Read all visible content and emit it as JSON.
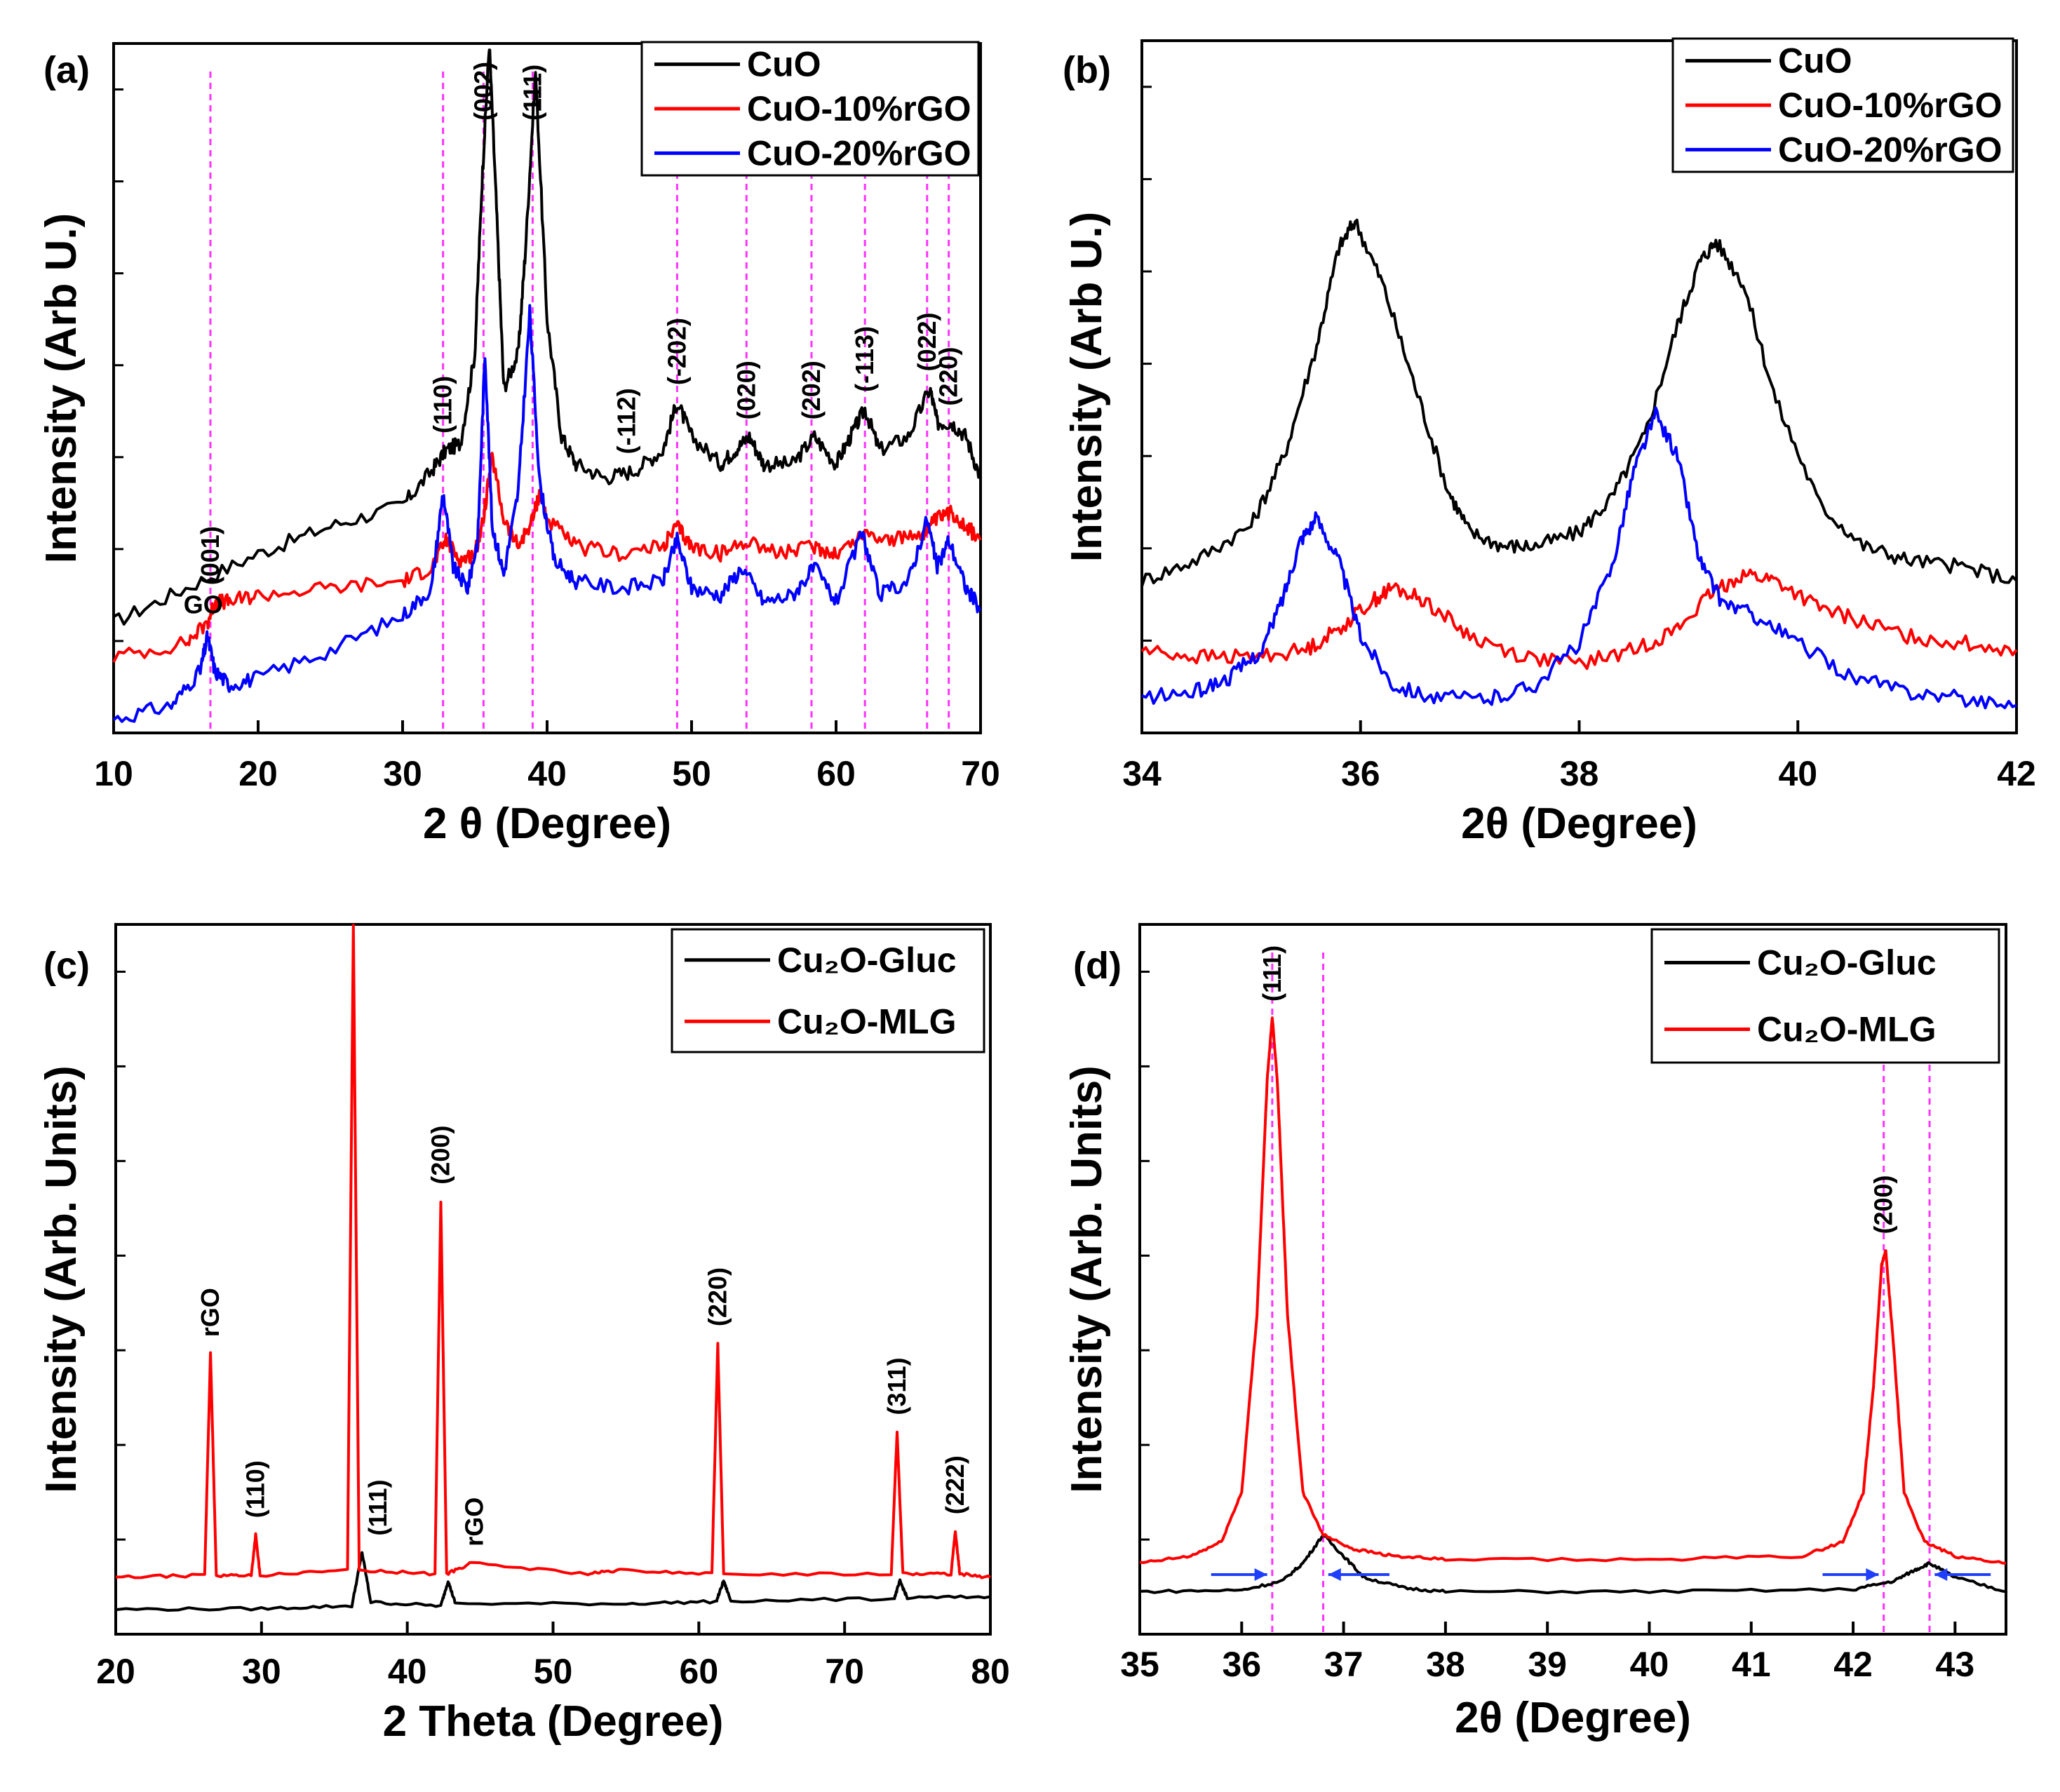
{
  "chart_data": [
    {
      "panel": "(a)",
      "type": "line",
      "xlabel": "2 θ (Degree)",
      "ylabel": "Intensity (Arb U.)",
      "xlim": [
        10,
        70
      ],
      "ylim": [
        0,
        100
      ],
      "xticks": [
        10,
        20,
        30,
        40,
        50,
        60,
        70
      ],
      "legend_position": "top-right",
      "series": [
        {
          "name": "CuO",
          "color": "#000000",
          "x": [
            10,
            15,
            20,
            25,
            30,
            32,
            33,
            34,
            35,
            35.5,
            36,
            36.5,
            37,
            38,
            38.5,
            39.2,
            40,
            41,
            42,
            44,
            46,
            48,
            49,
            50,
            52,
            53,
            54,
            55,
            57,
            58.5,
            60,
            61,
            62,
            63,
            65,
            66.5,
            67,
            68,
            69,
            70
          ],
          "y": [
            16,
            21,
            26,
            30,
            33,
            38,
            41,
            42,
            55,
            80,
            100,
            76,
            50,
            55,
            70,
            96,
            60,
            43,
            39,
            37,
            38,
            41,
            48,
            43,
            39,
            41,
            43,
            39,
            39,
            43,
            39,
            43,
            47,
            41,
            43,
            50,
            45,
            45,
            43,
            37
          ]
        },
        {
          "name": "CuO-10%rGO",
          "color": "#ff0000",
          "x": [
            10,
            15,
            16.5,
            17,
            18,
            20,
            25,
            30,
            32,
            33,
            34,
            35,
            35.5,
            36.2,
            37,
            38,
            39,
            39.5,
            40,
            42,
            45,
            48,
            49,
            50,
            52,
            54,
            56,
            58.5,
            60,
            62,
            64,
            66,
            67,
            68,
            69,
            70
          ],
          "y": [
            11,
            13,
            16,
            19,
            19,
            20,
            21,
            22,
            24,
            28,
            25,
            26,
            30,
            40,
            31,
            27,
            31,
            35,
            31,
            27,
            26,
            27,
            30,
            27,
            26,
            28,
            26,
            27,
            26,
            29,
            28,
            29,
            31,
            32,
            30,
            28
          ]
        },
        {
          "name": "CuO-20%rGO",
          "color": "#0000ff",
          "x": [
            10,
            14,
            16,
            16.5,
            17,
            18,
            20,
            25,
            30,
            32,
            32.8,
            33.5,
            34.5,
            35.2,
            35.7,
            36.2,
            37,
            38,
            38.8,
            39.5,
            40.5,
            42,
            45,
            48,
            49,
            50,
            52,
            53.5,
            55,
            57,
            58.5,
            60,
            61.8,
            63,
            65,
            66.3,
            67,
            67.8,
            69,
            70
          ],
          "y": [
            2,
            4,
            9,
            14,
            9,
            7,
            8,
            12,
            17,
            21,
            35,
            24,
            21,
            28,
            55,
            30,
            23,
            35,
            61,
            36,
            25,
            22,
            21,
            22,
            28,
            21,
            20,
            24,
            19,
            20,
            24,
            19,
            29,
            20,
            22,
            31,
            24,
            28,
            21,
            18
          ]
        }
      ],
      "vlines_x": [
        16.7,
        32.8,
        35.6,
        39.0,
        49.0,
        53.8,
        58.3,
        62.0,
        66.3,
        67.8
      ],
      "peak_labels": [
        {
          "text": "(001)",
          "x": 16.7
        },
        {
          "text": "GO",
          "x": 16.2
        },
        {
          "text": "(110)",
          "x": 32.8
        },
        {
          "text": "(002)",
          "x": 35.6
        },
        {
          "text": "(111)",
          "x": 39.0
        },
        {
          "text": "(-112)",
          "x": 45.5
        },
        {
          "text": "(-202)",
          "x": 49.0
        },
        {
          "text": "(020)",
          "x": 53.8
        },
        {
          "text": "(202)",
          "x": 58.3
        },
        {
          "text": "(-113)",
          "x": 62.0
        },
        {
          "text": "(022)",
          "x": 66.3
        },
        {
          "text": "(220)",
          "x": 67.8
        }
      ]
    },
    {
      "panel": "(b)",
      "type": "line",
      "xlabel": "2θ (Degree)",
      "ylabel": "Intensity (Arb U.)",
      "xlim": [
        34,
        42
      ],
      "ylim": [
        0,
        100
      ],
      "xticks": [
        34,
        36,
        38,
        40,
        42
      ],
      "legend_position": "top-right",
      "series": [
        {
          "name": "CuO",
          "color": "#000000",
          "x": [
            34,
            34.5,
            35,
            35.3,
            35.6,
            35.8,
            35.95,
            36.2,
            36.5,
            36.8,
            37.0,
            37.3,
            37.6,
            38.0,
            38.3,
            38.6,
            38.9,
            39.1,
            39.25,
            39.5,
            39.8,
            40.2,
            40.6,
            41,
            41.5,
            42
          ],
          "y": [
            22,
            25,
            30,
            40,
            56,
            70,
            74,
            65,
            50,
            35,
            29,
            27,
            27,
            29,
            34,
            43,
            59,
            68,
            71,
            65,
            48,
            33,
            27,
            25,
            24,
            22
          ]
        },
        {
          "name": "CuO-10%rGO",
          "color": "#ff0000",
          "x": [
            34,
            34.5,
            35,
            35.5,
            35.8,
            36.1,
            36.3,
            36.6,
            37.0,
            37.5,
            38.0,
            38.5,
            38.9,
            39.2,
            39.5,
            39.8,
            40.2,
            40.6,
            41,
            41.5,
            42
          ],
          "y": [
            12,
            11,
            11,
            12,
            15,
            19,
            21,
            19,
            14,
            11,
            10,
            12,
            15,
            20,
            23,
            22,
            18,
            16,
            14,
            13,
            12
          ]
        },
        {
          "name": "CuO-20%rGO",
          "color": "#0000ff",
          "x": [
            34,
            34.5,
            34.8,
            35.1,
            35.3,
            35.45,
            35.6,
            35.8,
            36.0,
            36.3,
            36.7,
            37.2,
            37.6,
            38.0,
            38.3,
            38.5,
            38.7,
            38.9,
            39.1,
            39.3,
            39.6,
            40.0,
            40.5,
            41,
            41.5,
            42
          ],
          "y": [
            5,
            6,
            8,
            12,
            20,
            28,
            31,
            25,
            14,
            7,
            5,
            5,
            7,
            13,
            24,
            38,
            46,
            40,
            25,
            19,
            17,
            13,
            8,
            6,
            5,
            4
          ]
        }
      ]
    },
    {
      "panel": "(c)",
      "type": "line",
      "xlabel": "2 Theta (Degree)",
      "ylabel": "Intensity (Arb. Units)",
      "xlim": [
        20,
        80
      ],
      "ylim": [
        0,
        100
      ],
      "xticks": [
        20,
        30,
        40,
        50,
        60,
        70,
        80
      ],
      "legend_position": "top-right",
      "series": [
        {
          "name": "Cu₂O-Gluc",
          "color": "#000000",
          "x": [
            20,
            30,
            36.2,
            36.9,
            37.5,
            42.3,
            42.8,
            43.3,
            55,
            61.2,
            61.7,
            62.2,
            73.4,
            73.8,
            74.3,
            80
          ],
          "y": [
            3.5,
            3.6,
            4.0,
            11.5,
            4.5,
            4.0,
            7.5,
            4.3,
            4.3,
            4.6,
            7.5,
            4.7,
            5.0,
            7.5,
            5.1,
            5.3
          ]
        },
        {
          "name": "Cu₂O-MLG",
          "color": "#ff0000",
          "x": [
            20,
            26.1,
            26.5,
            26.9,
            29.3,
            29.6,
            29.9,
            35.9,
            36.3,
            36.7,
            41.9,
            42.3,
            42.7,
            44.4,
            52.4,
            54.6,
            60.9,
            61.3,
            61.7,
            73.2,
            73.6,
            74.0,
            77.3,
            77.6,
            77.9,
            80
          ],
          "y": [
            8.0,
            8.3,
            39.5,
            8.3,
            8.3,
            14.0,
            8.3,
            9.0,
            100,
            9.0,
            8.5,
            61.0,
            8.5,
            10.0,
            8.5,
            9.0,
            8.5,
            41.0,
            8.5,
            8.5,
            28.5,
            8.5,
            8.5,
            14.5,
            8.5,
            8.0
          ]
        }
      ],
      "peak_labels": [
        {
          "text": "rGO",
          "x": 26.5
        },
        {
          "text": "(110)",
          "x": 29.6
        },
        {
          "text": "(111)",
          "x": 38.0
        },
        {
          "text": "(200)",
          "x": 42.3
        },
        {
          "text": "rGO",
          "x": 44.6
        },
        {
          "text": "(220)",
          "x": 61.3
        },
        {
          "text": "(311)",
          "x": 73.6
        },
        {
          "text": "(222)",
          "x": 77.6
        }
      ]
    },
    {
      "panel": "(d)",
      "type": "line",
      "xlabel": "2θ (Degree)",
      "ylabel": "Intensity (Arb. Units)",
      "xlim": [
        35,
        43.5
      ],
      "ylim": [
        0,
        100
      ],
      "xticks": [
        35,
        36,
        37,
        38,
        39,
        40,
        41,
        42,
        43
      ],
      "legend_position": "top-right",
      "series": [
        {
          "name": "Cu₂O-Gluc",
          "color": "#000000",
          "x": [
            35,
            36,
            36.4,
            36.6,
            36.8,
            37.0,
            37.2,
            37.6,
            38,
            40,
            42,
            42.4,
            42.6,
            42.75,
            43.0,
            43.5
          ],
          "y": [
            6,
            6.2,
            7.5,
            10,
            14,
            11,
            8,
            6.5,
            6,
            6,
            6.3,
            7.5,
            9,
            10,
            8,
            6
          ]
        },
        {
          "name": "Cu₂O-MLG",
          "color": "#ff0000",
          "x": [
            35,
            35.5,
            35.8,
            36.0,
            36.15,
            36.25,
            36.3,
            36.35,
            36.45,
            36.6,
            36.8,
            37.1,
            37.5,
            38,
            40,
            41.5,
            41.9,
            42.1,
            42.2,
            42.28,
            42.32,
            42.4,
            42.5,
            42.7,
            43,
            43.5
          ],
          "y": [
            10,
            11,
            13,
            20,
            45,
            78,
            87,
            78,
            45,
            20,
            14,
            12,
            11,
            10.5,
            10.5,
            11,
            13,
            20,
            35,
            52,
            54,
            40,
            20,
            13,
            11,
            10
          ]
        }
      ],
      "vlines_x": [
        36.3,
        36.8,
        42.3,
        42.75
      ],
      "peak_labels": [
        {
          "text": "(111)",
          "x": 36.3
        },
        {
          "text": "(200)",
          "x": 42.3
        }
      ],
      "arrows": [
        {
          "from_x": 35.7,
          "to_x": 36.25,
          "direction": "right"
        },
        {
          "from_x": 37.45,
          "to_x": 36.85,
          "direction": "left"
        },
        {
          "from_x": 41.7,
          "to_x": 42.25,
          "direction": "right"
        },
        {
          "from_x": 43.35,
          "to_x": 42.8,
          "direction": "left"
        }
      ]
    }
  ]
}
